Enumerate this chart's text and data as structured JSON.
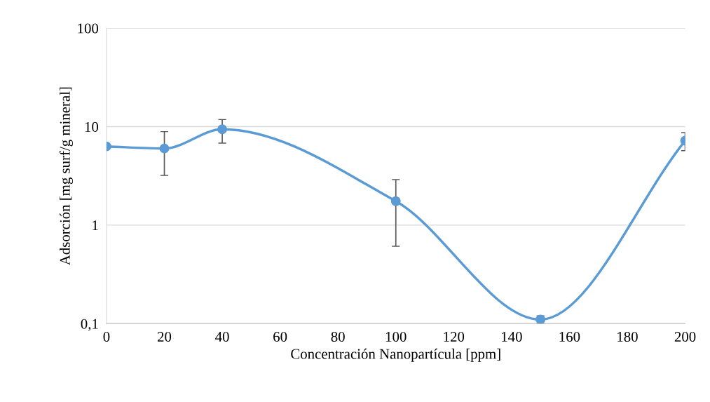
{
  "chart_data": {
    "type": "line",
    "xlabel": "Concentración Nanopartícula [ppm]",
    "ylabel": "Adsorción [mg surf/g mineral]",
    "x": [
      0,
      20,
      40,
      100,
      150,
      200
    ],
    "series": [
      {
        "color": "#5b9bd5",
        "values": [
          6.3,
          6.0,
          9.4,
          1.75,
          0.11,
          7.2
        ],
        "errors": [
          null,
          [
            3.2,
            8.9
          ],
          [
            6.8,
            11.8
          ],
          [
            0.61,
            2.9
          ],
          [
            0.1,
            0.12
          ],
          [
            5.7,
            8.7
          ]
        ]
      }
    ],
    "log": "y",
    "xlim": [
      0,
      200
    ],
    "xticks": [
      0,
      20,
      40,
      60,
      80,
      100,
      120,
      140,
      160,
      180,
      200
    ],
    "ylim": [
      0.1,
      100
    ],
    "yticks": [
      {
        "value": 0.1,
        "label": "0,1"
      },
      1,
      10,
      100
    ],
    "grid": "y",
    "marker": "circle",
    "line_style": "solid"
  }
}
